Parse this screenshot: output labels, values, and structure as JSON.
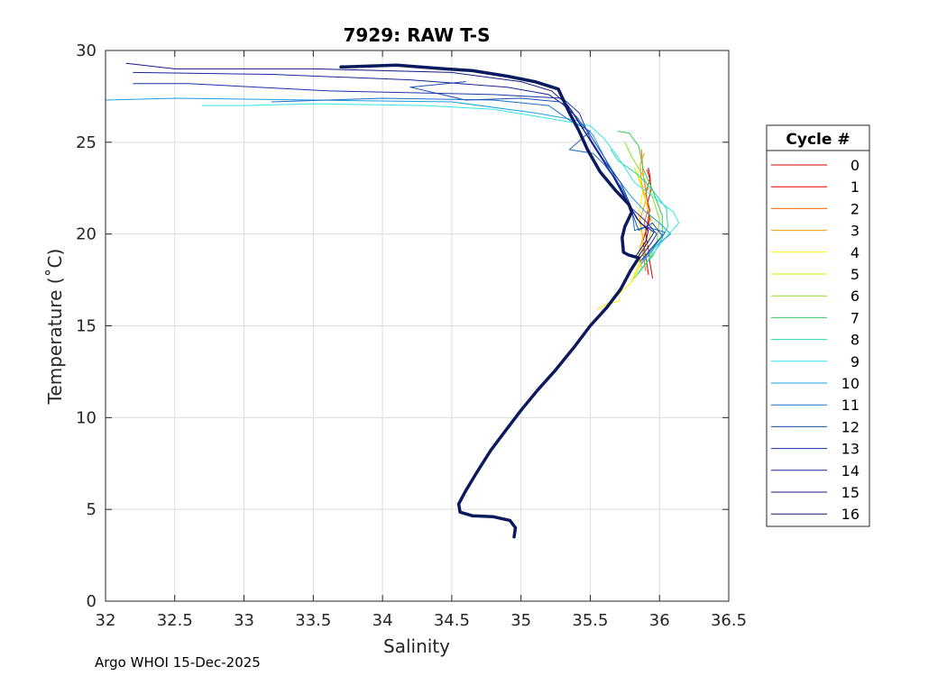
{
  "chart_data": {
    "type": "line",
    "title": "7929: RAW T-S",
    "xlabel": "Salinity",
    "ylabel": "Temperature (˚C)",
    "xlim": [
      32,
      36.5
    ],
    "ylim": [
      0,
      30
    ],
    "xticks": [
      "32",
      "32.5",
      "33",
      "33.5",
      "34",
      "34.5",
      "35",
      "35.5",
      "36",
      "36.5"
    ],
    "yticks": [
      "0",
      "5",
      "10",
      "15",
      "20",
      "25",
      "30"
    ],
    "grid": true,
    "legend": {
      "title": "Cycle #",
      "placement": "right"
    },
    "footer": "Argo WHOI 15-Dec-2025",
    "series": [
      {
        "name": "0",
        "color": "#cc0000",
        "values": [
          [
            35.95,
            17.6
          ],
          [
            35.93,
            18.5
          ],
          [
            35.92,
            19.2
          ],
          [
            35.9,
            20.0
          ],
          [
            35.93,
            20.8
          ],
          [
            35.91,
            21.6
          ],
          [
            35.94,
            22.4
          ],
          [
            35.93,
            23.2
          ],
          [
            35.92,
            23.6
          ]
        ]
      },
      {
        "name": "1",
        "color": "#e60000",
        "values": [
          [
            35.92,
            17.8
          ],
          [
            35.9,
            18.8
          ],
          [
            35.88,
            19.6
          ],
          [
            35.91,
            20.4
          ],
          [
            35.93,
            21.3
          ],
          [
            35.9,
            22.2
          ],
          [
            35.93,
            23.0
          ],
          [
            35.91,
            23.5
          ]
        ]
      },
      {
        "name": "2",
        "color": "#ff6600",
        "values": [
          [
            35.9,
            18.0
          ],
          [
            35.88,
            19.0
          ],
          [
            35.91,
            19.8
          ],
          [
            35.89,
            20.6
          ],
          [
            35.92,
            21.4
          ],
          [
            35.9,
            22.4
          ],
          [
            35.88,
            23.4
          ],
          [
            35.87,
            24.6
          ]
        ]
      },
      {
        "name": "3",
        "color": "#ff9900",
        "values": [
          [
            35.87,
            18.2
          ],
          [
            35.85,
            19.0
          ],
          [
            35.88,
            19.8
          ],
          [
            35.86,
            20.8
          ],
          [
            35.9,
            21.8
          ],
          [
            35.87,
            22.8
          ],
          [
            35.86,
            23.8
          ],
          [
            35.89,
            24.4
          ]
        ]
      },
      {
        "name": "4",
        "color": "#ffee00",
        "values": [
          [
            35.72,
            16.4
          ],
          [
            35.6,
            16.1
          ],
          [
            35.55,
            15.9
          ],
          [
            35.65,
            16.3
          ],
          [
            35.8,
            17.4
          ],
          [
            35.85,
            18.4
          ],
          [
            35.88,
            19.6
          ],
          [
            35.85,
            21.0
          ],
          [
            35.88,
            22.4
          ],
          [
            35.84,
            23.4
          ]
        ]
      },
      {
        "name": "5",
        "color": "#ccee00",
        "values": [
          [
            35.8,
            17.4
          ],
          [
            35.88,
            18.6
          ],
          [
            35.92,
            19.6
          ],
          [
            35.95,
            20.6
          ],
          [
            35.9,
            21.8
          ],
          [
            35.86,
            22.8
          ],
          [
            35.82,
            23.6
          ]
        ]
      },
      {
        "name": "6",
        "color": "#88dd22",
        "values": [
          [
            35.82,
            17.6
          ],
          [
            35.92,
            18.6
          ],
          [
            35.98,
            19.6
          ],
          [
            36.0,
            20.8
          ],
          [
            35.95,
            22.0
          ],
          [
            35.88,
            23.2
          ],
          [
            35.8,
            24.2
          ],
          [
            35.75,
            25.0
          ]
        ]
      },
      {
        "name": "7",
        "color": "#33cc55",
        "values": [
          [
            35.84,
            17.8
          ],
          [
            35.95,
            18.8
          ],
          [
            36.02,
            19.8
          ],
          [
            36.02,
            21.0
          ],
          [
            35.95,
            22.4
          ],
          [
            35.88,
            23.6
          ],
          [
            35.85,
            24.8
          ],
          [
            35.78,
            25.5
          ],
          [
            35.7,
            25.6
          ]
        ]
      },
      {
        "name": "8",
        "color": "#22ddaa",
        "values": [
          [
            35.86,
            18.0
          ],
          [
            35.98,
            19.2
          ],
          [
            36.06,
            20.4
          ],
          [
            36.05,
            21.4
          ],
          [
            35.95,
            22.4
          ],
          [
            35.85,
            23.2
          ],
          [
            35.7,
            24.0
          ],
          [
            35.65,
            24.6
          ]
        ]
      },
      {
        "name": "9",
        "color": "#33e6e6",
        "values": [
          [
            35.88,
            18.2
          ],
          [
            36.02,
            19.6
          ],
          [
            36.14,
            20.6
          ],
          [
            36.1,
            21.2
          ],
          [
            35.96,
            22.0
          ],
          [
            35.82,
            22.8
          ],
          [
            35.7,
            24.2
          ],
          [
            35.6,
            25.2
          ],
          [
            35.5,
            25.9
          ],
          [
            35.2,
            26.3
          ],
          [
            34.8,
            26.8
          ],
          [
            34.3,
            27.0
          ],
          [
            33.5,
            27.1
          ],
          [
            33.0,
            27.0
          ],
          [
            32.7,
            27.0
          ]
        ]
      },
      {
        "name": "10",
        "color": "#1a9fdd",
        "values": [
          [
            35.87,
            18.4
          ],
          [
            35.98,
            19.4
          ],
          [
            36.08,
            20.0
          ],
          [
            36.0,
            20.6
          ],
          [
            35.9,
            21.2
          ],
          [
            35.8,
            22.0
          ],
          [
            35.7,
            23.0
          ],
          [
            35.6,
            24.2
          ],
          [
            35.52,
            25.4
          ],
          [
            35.4,
            26.2
          ],
          [
            35.1,
            26.6
          ],
          [
            34.5,
            27.2
          ],
          [
            33.5,
            27.3
          ],
          [
            32.5,
            27.4
          ],
          [
            32.0,
            27.3
          ]
        ]
      },
      {
        "name": "11",
        "color": "#1a6fcc",
        "values": [
          [
            35.88,
            18.6
          ],
          [
            35.98,
            19.5
          ],
          [
            36.04,
            20.1
          ],
          [
            35.9,
            20.4
          ],
          [
            35.82,
            20.2
          ],
          [
            35.8,
            21.4
          ],
          [
            35.72,
            22.6
          ],
          [
            35.6,
            23.8
          ],
          [
            35.52,
            24.4
          ],
          [
            35.35,
            24.6
          ],
          [
            35.5,
            25.6
          ],
          [
            35.35,
            26.2
          ],
          [
            35.2,
            27.0
          ],
          [
            34.8,
            27.3
          ],
          [
            34.0,
            27.4
          ],
          [
            33.2,
            27.2
          ]
        ]
      },
      {
        "name": "12",
        "color": "#1a4fb3",
        "values": [
          [
            35.86,
            18.5
          ],
          [
            35.96,
            19.4
          ],
          [
            36.02,
            19.9
          ],
          [
            35.95,
            20.6
          ],
          [
            35.85,
            20.2
          ],
          [
            35.78,
            21.6
          ],
          [
            35.7,
            22.8
          ],
          [
            35.6,
            24.2
          ],
          [
            35.5,
            25.4
          ],
          [
            35.4,
            26.4
          ],
          [
            35.28,
            27.2
          ],
          [
            35.0,
            27.4
          ],
          [
            34.6,
            27.3
          ],
          [
            34.2,
            28.0
          ],
          [
            34.6,
            28.3
          ]
        ]
      },
      {
        "name": "13",
        "color": "#1a33aa",
        "values": [
          [
            35.85,
            18.6
          ],
          [
            35.94,
            19.5
          ],
          [
            35.98,
            20.0
          ],
          [
            35.9,
            20.7
          ],
          [
            35.8,
            21.4
          ],
          [
            35.72,
            22.8
          ],
          [
            35.6,
            24.0
          ],
          [
            35.5,
            25.2
          ],
          [
            35.42,
            26.6
          ],
          [
            35.3,
            27.4
          ],
          [
            34.8,
            27.6
          ],
          [
            33.6,
            27.8
          ],
          [
            32.6,
            28.2
          ],
          [
            32.2,
            28.2
          ]
        ]
      },
      {
        "name": "14",
        "color": "#1a2299",
        "values": [
          [
            35.84,
            18.7
          ],
          [
            35.92,
            19.6
          ],
          [
            35.96,
            20.1
          ],
          [
            35.86,
            20.6
          ],
          [
            35.78,
            21.6
          ],
          [
            35.68,
            23.0
          ],
          [
            35.56,
            24.4
          ],
          [
            35.46,
            25.6
          ],
          [
            35.36,
            26.8
          ],
          [
            35.2,
            27.6
          ],
          [
            34.9,
            28.0
          ],
          [
            34.2,
            28.4
          ],
          [
            33.2,
            28.7
          ],
          [
            32.2,
            28.8
          ]
        ]
      },
      {
        "name": "15",
        "color": "#141a88",
        "values": [
          [
            35.83,
            18.8
          ],
          [
            35.9,
            19.6
          ],
          [
            35.92,
            20.2
          ],
          [
            35.84,
            20.8
          ],
          [
            35.76,
            21.8
          ],
          [
            35.66,
            23.2
          ],
          [
            35.54,
            24.6
          ],
          [
            35.44,
            25.8
          ],
          [
            35.34,
            27.0
          ],
          [
            35.22,
            27.8
          ],
          [
            35.0,
            28.3
          ],
          [
            34.5,
            28.8
          ],
          [
            33.5,
            29.0
          ],
          [
            32.5,
            29.0
          ],
          [
            32.15,
            29.3
          ]
        ]
      },
      {
        "name": "16",
        "color": "#0a1a5c",
        "thick": true,
        "values": [
          [
            34.95,
            3.5
          ],
          [
            34.96,
            4.0
          ],
          [
            34.92,
            4.4
          ],
          [
            34.8,
            4.6
          ],
          [
            34.65,
            4.65
          ],
          [
            34.56,
            4.85
          ],
          [
            34.55,
            5.3
          ],
          [
            34.6,
            6.0
          ],
          [
            34.68,
            7.0
          ],
          [
            34.78,
            8.2
          ],
          [
            34.88,
            9.2
          ],
          [
            35.0,
            10.4
          ],
          [
            35.12,
            11.5
          ],
          [
            35.25,
            12.6
          ],
          [
            35.38,
            13.8
          ],
          [
            35.5,
            15.0
          ],
          [
            35.62,
            16.0
          ],
          [
            35.72,
            17.0
          ],
          [
            35.79,
            18.0
          ],
          [
            35.85,
            18.7
          ],
          [
            35.78,
            18.85
          ],
          [
            35.74,
            19.0
          ],
          [
            35.73,
            19.8
          ],
          [
            35.75,
            20.4
          ],
          [
            35.8,
            21.2
          ],
          [
            35.78,
            21.6
          ],
          [
            35.68,
            22.4
          ],
          [
            35.57,
            23.4
          ],
          [
            35.48,
            24.6
          ],
          [
            35.42,
            25.6
          ],
          [
            35.35,
            26.6
          ],
          [
            35.3,
            27.4
          ],
          [
            35.27,
            27.9
          ],
          [
            35.1,
            28.3
          ],
          [
            34.9,
            28.6
          ],
          [
            34.65,
            28.9
          ],
          [
            34.45,
            29.0
          ],
          [
            34.1,
            29.2
          ],
          [
            33.7,
            29.1
          ]
        ]
      }
    ]
  }
}
